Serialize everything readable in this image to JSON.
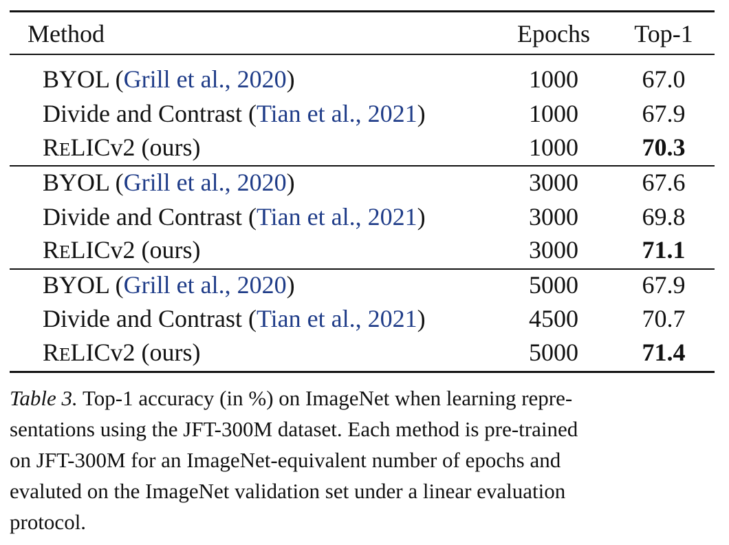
{
  "table": {
    "header": {
      "method": "Method",
      "epochs": "Epochs",
      "top1": "Top-1"
    },
    "groups": [
      [
        {
          "name": "BYOL",
          "cite_open": " (",
          "cite": "Grill et al., 2020",
          "cite_close": ")",
          "epochs": "1000",
          "top1": "67.0"
        },
        {
          "name": "Divide and Contrast",
          "cite_open": " (",
          "cite": "Tian et al., 2021",
          "cite_close": ")",
          "epochs": "1000",
          "top1": "67.9"
        },
        {
          "name_r": "R",
          "name_e": "E",
          "name_rest": "LICv2 (ours)",
          "epochs": "1000",
          "top1": "70.3"
        }
      ],
      [
        {
          "name": "BYOL",
          "cite_open": " (",
          "cite": "Grill et al., 2020",
          "cite_close": ")",
          "epochs": "3000",
          "top1": "67.6"
        },
        {
          "name": "Divide and Contrast",
          "cite_open": " (",
          "cite": "Tian et al., 2021",
          "cite_close": ")",
          "epochs": "3000",
          "top1": "69.8"
        },
        {
          "name_r": "R",
          "name_e": "E",
          "name_rest": "LICv2 (ours)",
          "epochs": "3000",
          "top1": "71.1"
        }
      ],
      [
        {
          "name": "BYOL",
          "cite_open": " (",
          "cite": "Grill et al., 2020",
          "cite_close": ")",
          "epochs": "5000",
          "top1": "67.9"
        },
        {
          "name": "Divide and Contrast",
          "cite_open": " (",
          "cite": "Tian et al., 2021",
          "cite_close": ")",
          "epochs": "4500",
          "top1": "70.7"
        },
        {
          "name_r": "R",
          "name_e": "E",
          "name_rest": "LICv2 (ours)",
          "epochs": "5000",
          "top1": "71.4"
        }
      ]
    ]
  },
  "caption": {
    "label": "Table 3.",
    "lines": [
      " Top-1 accuracy (in %) on ImageNet when learning repre-",
      "sentations using the JFT-300M dataset. Each method is pre-trained",
      "on JFT-300M for an ImageNet-equivalent number of epochs and",
      "evaluted on the ImageNet validation set under a linear evaluation",
      "protocol."
    ]
  }
}
